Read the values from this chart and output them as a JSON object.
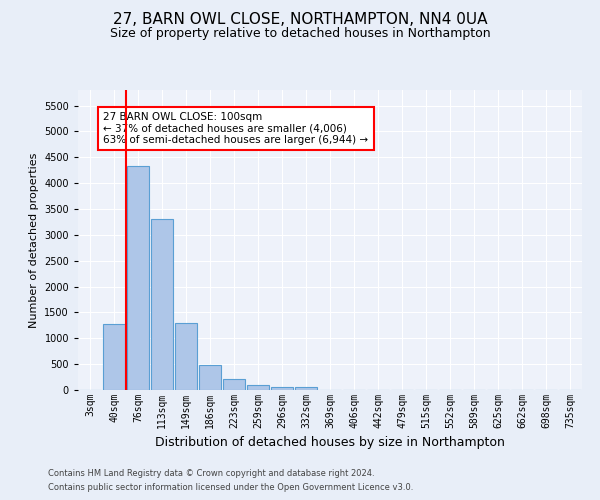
{
  "title": "27, BARN OWL CLOSE, NORTHAMPTON, NN4 0UA",
  "subtitle": "Size of property relative to detached houses in Northampton",
  "xlabel": "Distribution of detached houses by size in Northampton",
  "ylabel": "Number of detached properties",
  "footer_line1": "Contains HM Land Registry data © Crown copyright and database right 2024.",
  "footer_line2": "Contains public sector information licensed under the Open Government Licence v3.0.",
  "categories": [
    "3sqm",
    "40sqm",
    "76sqm",
    "113sqm",
    "149sqm",
    "186sqm",
    "223sqm",
    "259sqm",
    "296sqm",
    "332sqm",
    "369sqm",
    "406sqm",
    "442sqm",
    "479sqm",
    "515sqm",
    "552sqm",
    "589sqm",
    "625sqm",
    "662sqm",
    "698sqm",
    "735sqm"
  ],
  "values": [
    0,
    1270,
    4330,
    3300,
    1290,
    490,
    215,
    90,
    60,
    55,
    0,
    0,
    0,
    0,
    0,
    0,
    0,
    0,
    0,
    0,
    0
  ],
  "bar_color": "#aec6e8",
  "bar_edge_color": "#5a9fd4",
  "vline_color": "red",
  "vline_x_idx": 1.5,
  "annotation_text": "27 BARN OWL CLOSE: 100sqm\n← 37% of detached houses are smaller (4,006)\n63% of semi-detached houses are larger (6,944) →",
  "annotation_box_color": "white",
  "annotation_box_edgecolor": "red",
  "ylim": [
    0,
    5800
  ],
  "yticks": [
    0,
    500,
    1000,
    1500,
    2000,
    2500,
    3000,
    3500,
    4000,
    4500,
    5000,
    5500
  ],
  "bg_color": "#e8eef8",
  "plot_bg_color": "#eef2fa",
  "title_fontsize": 11,
  "subtitle_fontsize": 9,
  "xlabel_fontsize": 9,
  "ylabel_fontsize": 8,
  "tick_fontsize": 7,
  "footer_fontsize": 6,
  "annotation_fontsize": 7.5
}
